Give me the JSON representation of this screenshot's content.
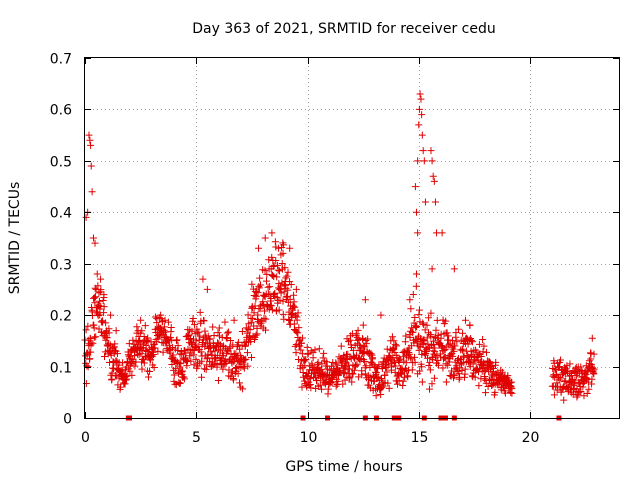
{
  "chart_data": {
    "type": "scatter",
    "title": "Day 363 of 2021, SRMTID for receiver cedu",
    "xlabel": "GPS time / hours",
    "ylabel": "SRMTID / TECUs",
    "xlim": [
      0,
      24
    ],
    "ylim": [
      0,
      0.7
    ],
    "xticks": [
      "0",
      "5",
      "10",
      "15",
      "20"
    ],
    "xtick_values": [
      0,
      5,
      10,
      15,
      20
    ],
    "yticks": [
      "0",
      "0.1",
      "0.2",
      "0.3",
      "0.4",
      "0.5",
      "0.6",
      "0.7"
    ],
    "ytick_values": [
      0,
      0.1,
      0.2,
      0.3,
      0.4,
      0.5,
      0.6,
      0.7
    ],
    "grid": true,
    "legend": "none",
    "marker": "plus",
    "color": "#e00000",
    "zero_square_marks_x": [
      1.95,
      2.0,
      9.8,
      10.9,
      12.6,
      13.1,
      13.9,
      14.1,
      15.25,
      16.0,
      16.2,
      16.6,
      21.3
    ],
    "trend": [
      [
        0.0,
        0.11,
        0.05
      ],
      [
        0.2,
        0.14,
        0.06
      ],
      [
        0.5,
        0.22,
        0.06
      ],
      [
        0.8,
        0.18,
        0.06
      ],
      [
        1.1,
        0.12,
        0.05
      ],
      [
        1.5,
        0.09,
        0.03
      ],
      [
        1.85,
        0.085,
        0.025
      ],
      [
        2.2,
        0.14,
        0.04
      ],
      [
        2.6,
        0.15,
        0.04
      ],
      [
        2.9,
        0.11,
        0.04
      ],
      [
        3.3,
        0.17,
        0.04
      ],
      [
        3.6,
        0.17,
        0.04
      ],
      [
        4.0,
        0.11,
        0.04
      ],
      [
        4.4,
        0.1,
        0.04
      ],
      [
        4.8,
        0.15,
        0.04
      ],
      [
        5.3,
        0.15,
        0.06
      ],
      [
        5.7,
        0.13,
        0.05
      ],
      [
        6.2,
        0.14,
        0.05
      ],
      [
        6.7,
        0.11,
        0.04
      ],
      [
        7.2,
        0.12,
        0.05
      ],
      [
        7.6,
        0.19,
        0.06
      ],
      [
        8.0,
        0.22,
        0.07
      ],
      [
        8.4,
        0.26,
        0.07
      ],
      [
        8.8,
        0.26,
        0.07
      ],
      [
        9.2,
        0.24,
        0.06
      ],
      [
        9.5,
        0.16,
        0.05
      ],
      [
        9.8,
        0.1,
        0.04
      ],
      [
        10.3,
        0.09,
        0.04
      ],
      [
        10.8,
        0.085,
        0.03
      ],
      [
        11.3,
        0.085,
        0.03
      ],
      [
        11.8,
        0.11,
        0.04
      ],
      [
        12.4,
        0.13,
        0.05
      ],
      [
        12.9,
        0.09,
        0.04
      ],
      [
        13.3,
        0.07,
        0.03
      ],
      [
        13.8,
        0.12,
        0.04
      ],
      [
        14.2,
        0.1,
        0.04
      ],
      [
        14.6,
        0.13,
        0.05
      ],
      [
        14.9,
        0.18,
        0.07
      ],
      [
        15.2,
        0.14,
        0.06
      ],
      [
        15.6,
        0.12,
        0.06
      ],
      [
        16.0,
        0.13,
        0.05
      ],
      [
        16.5,
        0.12,
        0.05
      ],
      [
        17.0,
        0.13,
        0.05
      ],
      [
        17.5,
        0.11,
        0.04
      ],
      [
        18.0,
        0.1,
        0.04
      ],
      [
        18.5,
        0.075,
        0.025
      ],
      [
        19.0,
        0.065,
        0.02
      ],
      [
        21.0,
        0.09,
        0.03
      ],
      [
        21.5,
        0.075,
        0.03
      ],
      [
        22.0,
        0.07,
        0.03
      ],
      [
        22.5,
        0.08,
        0.03
      ],
      [
        22.8,
        0.1,
        0.03
      ]
    ],
    "peaks": [
      [
        0.05,
        0.39
      ],
      [
        0.12,
        0.4
      ],
      [
        0.18,
        0.55
      ],
      [
        0.22,
        0.54
      ],
      [
        0.25,
        0.53
      ],
      [
        0.28,
        0.49
      ],
      [
        0.32,
        0.44
      ],
      [
        0.38,
        0.35
      ],
      [
        0.45,
        0.34
      ],
      [
        0.55,
        0.28
      ],
      [
        0.7,
        0.27
      ],
      [
        0.85,
        0.24
      ],
      [
        1.15,
        0.2
      ],
      [
        1.4,
        0.17
      ],
      [
        2.5,
        0.19
      ],
      [
        3.4,
        0.2
      ],
      [
        5.3,
        0.27
      ],
      [
        5.5,
        0.25
      ],
      [
        6.7,
        0.19
      ],
      [
        7.5,
        0.26
      ],
      [
        7.8,
        0.33
      ],
      [
        8.1,
        0.35
      ],
      [
        8.4,
        0.36
      ],
      [
        8.7,
        0.33
      ],
      [
        8.9,
        0.32
      ],
      [
        9.2,
        0.33
      ],
      [
        9.5,
        0.25
      ],
      [
        12.6,
        0.23
      ],
      [
        13.3,
        0.2
      ],
      [
        14.6,
        0.23
      ],
      [
        14.85,
        0.45
      ],
      [
        14.9,
        0.4
      ],
      [
        14.95,
        0.5
      ],
      [
        15.0,
        0.57
      ],
      [
        15.03,
        0.6
      ],
      [
        15.06,
        0.63
      ],
      [
        15.1,
        0.62
      ],
      [
        15.13,
        0.59
      ],
      [
        15.16,
        0.55
      ],
      [
        15.2,
        0.52
      ],
      [
        15.25,
        0.5
      ],
      [
        15.3,
        0.42
      ],
      [
        15.55,
        0.52
      ],
      [
        15.6,
        0.5
      ],
      [
        15.65,
        0.47
      ],
      [
        15.7,
        0.46
      ],
      [
        15.75,
        0.42
      ],
      [
        15.8,
        0.36
      ],
      [
        16.05,
        0.36
      ],
      [
        15.6,
        0.29
      ],
      [
        16.6,
        0.29
      ],
      [
        17.1,
        0.19
      ],
      [
        17.3,
        0.18
      ],
      [
        22.8,
        0.155
      ],
      [
        14.9,
        0.28
      ],
      [
        14.95,
        0.36
      ]
    ]
  }
}
